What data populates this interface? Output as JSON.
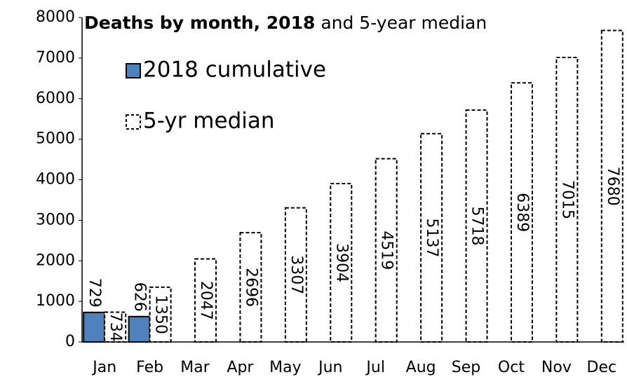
{
  "chart_data": {
    "type": "bar",
    "title": [
      "Deaths by month, 2018",
      "and 5-year median"
    ],
    "categories": [
      "Jan",
      "Feb",
      "Mar",
      "Apr",
      "May",
      "Jun",
      "Jul",
      "Aug",
      "Sep",
      "Oct",
      "Nov",
      "Dec"
    ],
    "series": [
      {
        "name": "2018 cumulative",
        "color": "#4f81bd",
        "values": [
          729,
          626,
          null,
          null,
          null,
          null,
          null,
          null,
          null,
          null,
          null,
          null
        ]
      },
      {
        "name": "5-yr median",
        "color": "#ffffff",
        "dashed": true,
        "values": [
          734,
          1350,
          2047,
          2696,
          3307,
          3904,
          4519,
          5137,
          5718,
          6389,
          7015,
          7680
        ]
      }
    ],
    "ylim": [
      0,
      8000
    ],
    "yticks": [
      0,
      1000,
      2000,
      3000,
      4000,
      5000,
      6000,
      7000,
      8000
    ],
    "grid": false
  }
}
